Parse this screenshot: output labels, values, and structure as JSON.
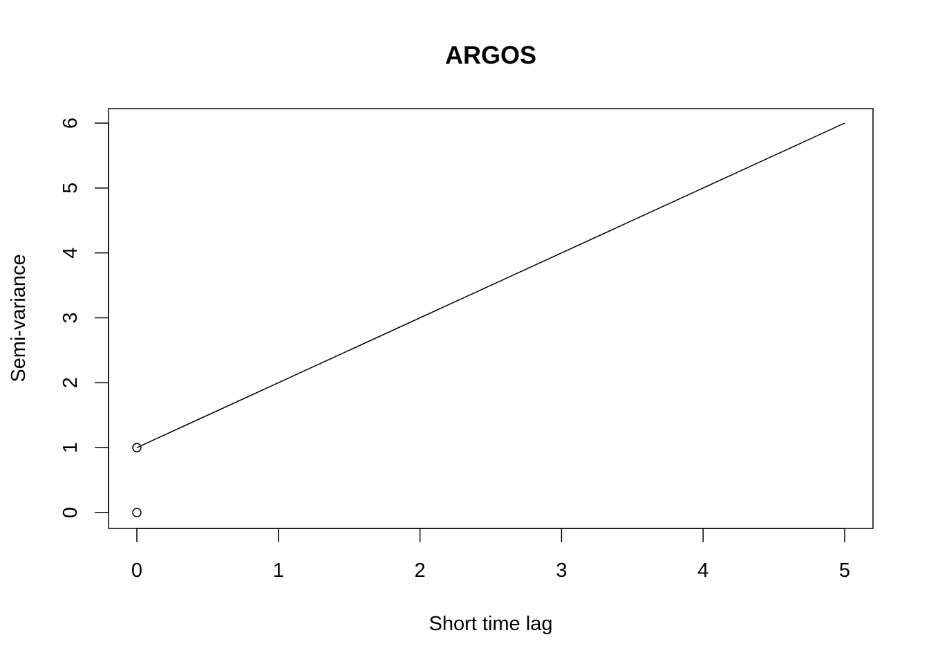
{
  "chart_data": {
    "type": "line",
    "title": "ARGOS",
    "xlabel": "Short time lag",
    "ylabel": "Semi-variance",
    "xlim": [
      0,
      5
    ],
    "ylim": [
      0,
      6
    ],
    "xticks": [
      0,
      1,
      2,
      3,
      4,
      5
    ],
    "yticks": [
      0,
      1,
      2,
      3,
      4,
      5,
      6
    ],
    "grid": false,
    "series": [
      {
        "kind": "line",
        "x": [
          0,
          5
        ],
        "y": [
          1,
          6
        ]
      },
      {
        "kind": "points",
        "x": [
          0,
          0
        ],
        "y": [
          0,
          1
        ]
      }
    ],
    "colors": {
      "line": "#000000",
      "points": "#000000"
    }
  }
}
